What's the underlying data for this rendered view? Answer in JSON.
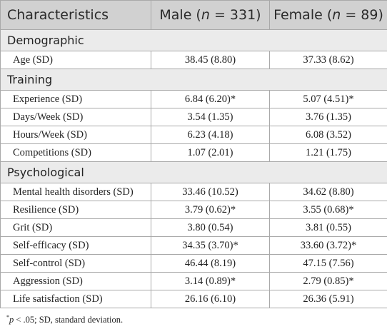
{
  "table": {
    "headers": {
      "characteristics": "Characteristics",
      "male_prefix": "Male (",
      "male_n": "n",
      "male_suffix": " = 331)",
      "female_prefix": "Female (",
      "female_n": "n",
      "female_suffix": " = 89)"
    },
    "sections": [
      {
        "title": "Demographic",
        "rows": [
          {
            "label": "Age (SD)",
            "male": "38.45 (8.80)",
            "female": "37.33 (8.62)"
          }
        ]
      },
      {
        "title": "Training",
        "rows": [
          {
            "label": "Experience (SD)",
            "male": "6.84 (6.20)*",
            "female": "5.07 (4.51)*"
          },
          {
            "label": "Days/Week (SD)",
            "male": "3.54 (1.35)",
            "female": "3.76 (1.35)"
          },
          {
            "label": "Hours/Week (SD)",
            "male": "6.23 (4.18)",
            "female": "6.08 (3.52)"
          },
          {
            "label": "Competitions (SD)",
            "male": "1.07 (2.01)",
            "female": "1.21 (1.75)"
          }
        ]
      },
      {
        "title": "Psychological",
        "rows": [
          {
            "label": "Mental health disorders (SD)",
            "male": "33.46 (10.52)",
            "female": "34.62 (8.80)"
          },
          {
            "label": "Resilience (SD)",
            "male": "3.79 (0.62)*",
            "female": "3.55 (0.68)*"
          },
          {
            "label": "Grit (SD)",
            "male": "3.80 (0.54)",
            "female": "3.81 (0.55)"
          },
          {
            "label": "Self-efficacy (SD)",
            "male": "34.35 (3.70)*",
            "female": "33.60 (3.72)*"
          },
          {
            "label": "Self-control (SD)",
            "male": "46.44 (8.19)",
            "female": "47.15 (7.56)"
          },
          {
            "label": "Aggression (SD)",
            "male": "3.14 (0.89)*",
            "female": "2.79 (0.85)*"
          },
          {
            "label": "Life satisfaction (SD)",
            "male": "26.16 (6.10)",
            "female": "26.36 (5.91)"
          }
        ]
      }
    ]
  },
  "footnote": {
    "marker": "*",
    "p": "p",
    "text": " < .05; SD, standard deviation."
  }
}
